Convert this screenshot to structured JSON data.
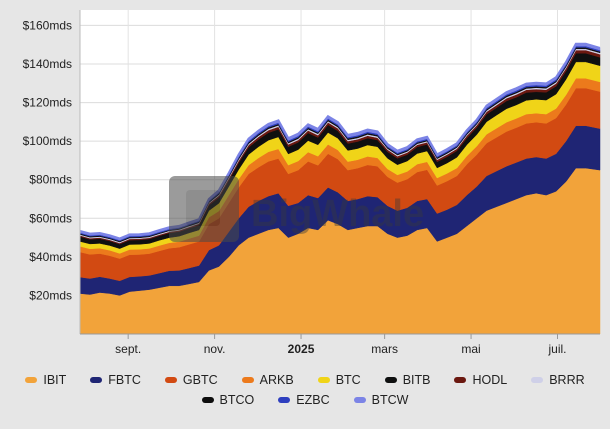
{
  "chart_data": {
    "type": "area",
    "stacked": true,
    "y_unit_prefix": "$",
    "y_unit_suffix": "mds",
    "ylim": [
      0,
      168
    ],
    "y_ticks": [
      20,
      40,
      60,
      80,
      100,
      120,
      140,
      160
    ],
    "y_tick_labels": [
      "$20mds",
      "$40mds",
      "$60mds",
      "$80mds",
      "$100mds",
      "$120mds",
      "$140mds",
      "$160mds"
    ],
    "x_range": [
      "2024-07-29",
      "2025-07-31"
    ],
    "x_ticks": [
      {
        "date": "2024-09-01",
        "label": "sept.",
        "bold": false
      },
      {
        "date": "2024-11-01",
        "label": "nov.",
        "bold": false
      },
      {
        "date": "2025-01-01",
        "label": "2025",
        "bold": true
      },
      {
        "date": "2025-03-01",
        "label": "mars",
        "bold": false
      },
      {
        "date": "2025-05-01",
        "label": "mai",
        "bold": false
      },
      {
        "date": "2025-07-01",
        "label": "juil.",
        "bold": false
      }
    ],
    "grid": true,
    "legend_position": "bottom",
    "x": [
      "2024-07-29",
      "2024-08-05",
      "2024-08-12",
      "2024-08-19",
      "2024-08-26",
      "2024-09-02",
      "2024-09-09",
      "2024-09-16",
      "2024-09-23",
      "2024-09-30",
      "2024-10-07",
      "2024-10-14",
      "2024-10-21",
      "2024-10-28",
      "2024-11-04",
      "2024-11-11",
      "2024-11-18",
      "2024-11-25",
      "2024-12-02",
      "2024-12-09",
      "2024-12-16",
      "2024-12-23",
      "2024-12-30",
      "2025-01-06",
      "2025-01-13",
      "2025-01-20",
      "2025-01-27",
      "2025-02-03",
      "2025-02-10",
      "2025-02-17",
      "2025-02-24",
      "2025-03-03",
      "2025-03-10",
      "2025-03-17",
      "2025-03-24",
      "2025-03-31",
      "2025-04-07",
      "2025-04-14",
      "2025-04-21",
      "2025-04-28",
      "2025-05-05",
      "2025-05-12",
      "2025-05-19",
      "2025-05-26",
      "2025-06-02",
      "2025-06-09",
      "2025-06-16",
      "2025-06-23",
      "2025-06-30",
      "2025-07-07",
      "2025-07-14",
      "2025-07-21",
      "2025-07-31"
    ],
    "series": [
      {
        "name": "IBIT",
        "color": "#f2a33a",
        "values": [
          21,
          20.5,
          21.5,
          21,
          20,
          22,
          22.5,
          23,
          24,
          25,
          25,
          26,
          27,
          33,
          35,
          40,
          46,
          50,
          52,
          54,
          55,
          50,
          52,
          55,
          54,
          59,
          57,
          54,
          55,
          56,
          56,
          52,
          50,
          51,
          54,
          55,
          48,
          50,
          52,
          56,
          60,
          64,
          66,
          68,
          70,
          72,
          73,
          72,
          74,
          79,
          86,
          86,
          85
        ]
      },
      {
        "name": "FBTC",
        "color": "#1f2574",
        "values": [
          8.5,
          8.3,
          8.2,
          7.8,
          7.6,
          7.6,
          7.4,
          7.4,
          7.6,
          7.8,
          8,
          8.2,
          8.5,
          10.5,
          11,
          13,
          14,
          16,
          17,
          17.5,
          18,
          16.5,
          16,
          17,
          16.5,
          17,
          16.5,
          15,
          15,
          15.5,
          15,
          14.5,
          14,
          14.5,
          15,
          15,
          14.5,
          14.5,
          15,
          16,
          16.5,
          18,
          18.5,
          19,
          19,
          19,
          18.8,
          19,
          19.5,
          21,
          22,
          22,
          21.5
        ]
      },
      {
        "name": "GBTC",
        "color": "#d24a12",
        "values": [
          13,
          12.5,
          12,
          11.8,
          11.5,
          11.5,
          11.3,
          11.3,
          11.5,
          11.7,
          12,
          12.3,
          12.5,
          13.5,
          14,
          15,
          16,
          17,
          17.5,
          18,
          18,
          16.5,
          17,
          17.5,
          17,
          17.5,
          17.2,
          16,
          16,
          16.2,
          16,
          15,
          14.5,
          14.8,
          15,
          15.2,
          14.5,
          14.8,
          15,
          16,
          16.5,
          17,
          17.5,
          18,
          18,
          18.2,
          18,
          18.2,
          18.5,
          19,
          19.5,
          19.5,
          19.2
        ]
      },
      {
        "name": "ARKB",
        "color": "#ec7a1c",
        "values": [
          3,
          2.9,
          2.8,
          2.8,
          2.7,
          2.7,
          2.7,
          2.7,
          2.8,
          2.8,
          2.9,
          3,
          3,
          3.5,
          3.8,
          4,
          4.3,
          4.6,
          4.8,
          5,
          5,
          4.6,
          4.7,
          4.8,
          4.7,
          4.8,
          4.7,
          4.4,
          4.4,
          4.4,
          4.3,
          4.1,
          4,
          4,
          4.1,
          4.1,
          3.9,
          4,
          4.1,
          4.3,
          4.4,
          4.6,
          4.7,
          4.8,
          4.8,
          4.8,
          4.7,
          4.8,
          4.9,
          5,
          5.1,
          5.1,
          5
        ]
      },
      {
        "name": "BTC",
        "color": "#f0d418",
        "values": [
          2.5,
          2.5,
          2.5,
          2.5,
          2.5,
          2.6,
          2.6,
          2.6,
          2.7,
          2.7,
          2.8,
          2.9,
          3,
          3.5,
          4,
          4.5,
          5,
          5.5,
          5.8,
          6,
          6.2,
          5.8,
          5.9,
          6,
          5.9,
          6.2,
          6.1,
          5.8,
          5.8,
          5.9,
          5.8,
          5.5,
          5.3,
          5.4,
          5.5,
          5.6,
          5.2,
          5.3,
          5.5,
          5.8,
          6,
          6.5,
          6.8,
          7,
          7,
          7.2,
          7.2,
          7.3,
          7.5,
          8,
          8.5,
          8.5,
          8.4
        ]
      },
      {
        "name": "BITB",
        "color": "#0f1010",
        "values": [
          2.5,
          2.4,
          2.4,
          2.3,
          2.3,
          2.3,
          2.3,
          2.3,
          2.3,
          2.4,
          2.4,
          2.5,
          2.5,
          2.8,
          3,
          3.2,
          3.5,
          3.7,
          3.8,
          3.9,
          4,
          3.7,
          3.8,
          3.9,
          3.8,
          3.9,
          3.8,
          3.6,
          3.6,
          3.6,
          3.5,
          3.4,
          3.3,
          3.3,
          3.4,
          3.4,
          3.2,
          3.3,
          3.4,
          3.5,
          3.6,
          3.8,
          3.9,
          4,
          4,
          4,
          3.9,
          4,
          4.1,
          4.3,
          4.5,
          4.5,
          4.4
        ]
      },
      {
        "name": "HODL",
        "color": "#6b1810",
        "values": [
          0.6,
          0.6,
          0.6,
          0.6,
          0.6,
          0.6,
          0.6,
          0.6,
          0.6,
          0.6,
          0.6,
          0.6,
          0.7,
          0.8,
          0.9,
          1,
          1.1,
          1.2,
          1.3,
          1.3,
          1.3,
          1.2,
          1.2,
          1.3,
          1.2,
          1.3,
          1.3,
          1.2,
          1.2,
          1.2,
          1.2,
          1.1,
          1.1,
          1.1,
          1.1,
          1.1,
          1,
          1.1,
          1.1,
          1.2,
          1.2,
          1.3,
          1.3,
          1.4,
          1.4,
          1.4,
          1.4,
          1.4,
          1.4,
          1.5,
          1.6,
          1.6,
          1.6
        ]
      },
      {
        "name": "BRRR",
        "color": "#cfd0e8",
        "values": [
          0.5,
          0.5,
          0.5,
          0.5,
          0.5,
          0.5,
          0.5,
          0.5,
          0.5,
          0.5,
          0.5,
          0.5,
          0.5,
          0.5,
          0.6,
          0.6,
          0.7,
          0.7,
          0.7,
          0.7,
          0.7,
          0.7,
          0.7,
          0.7,
          0.7,
          0.7,
          0.7,
          0.7,
          0.7,
          0.7,
          0.7,
          0.6,
          0.6,
          0.6,
          0.6,
          0.6,
          0.6,
          0.6,
          0.6,
          0.6,
          0.6,
          0.7,
          0.7,
          0.7,
          0.7,
          0.7,
          0.7,
          0.7,
          0.7,
          0.7,
          0.7,
          0.7,
          0.7
        ]
      },
      {
        "name": "BTCO",
        "color": "#0d0d0d",
        "values": [
          0.5,
          0.5,
          0.5,
          0.5,
          0.5,
          0.5,
          0.5,
          0.5,
          0.5,
          0.5,
          0.5,
          0.5,
          0.5,
          0.5,
          0.6,
          0.6,
          0.7,
          0.7,
          0.7,
          0.7,
          0.7,
          0.7,
          0.7,
          0.7,
          0.7,
          0.7,
          0.7,
          0.7,
          0.7,
          0.7,
          0.7,
          0.6,
          0.6,
          0.6,
          0.6,
          0.6,
          0.6,
          0.6,
          0.6,
          0.6,
          0.6,
          0.7,
          0.7,
          0.7,
          0.7,
          0.7,
          0.7,
          0.7,
          0.7,
          0.7,
          0.7,
          0.7,
          0.7
        ]
      },
      {
        "name": "EZBC",
        "color": "#2e3fbf",
        "values": [
          0.5,
          0.5,
          0.5,
          0.5,
          0.5,
          0.5,
          0.5,
          0.5,
          0.5,
          0.5,
          0.5,
          0.5,
          0.5,
          0.5,
          0.6,
          0.6,
          0.7,
          0.7,
          0.7,
          0.7,
          0.7,
          0.7,
          0.7,
          0.7,
          0.7,
          0.7,
          0.7,
          0.7,
          0.7,
          0.7,
          0.7,
          0.6,
          0.6,
          0.6,
          0.6,
          0.6,
          0.6,
          0.6,
          0.6,
          0.6,
          0.6,
          0.7,
          0.7,
          0.7,
          0.7,
          0.7,
          0.7,
          0.7,
          0.7,
          0.7,
          0.7,
          0.7,
          0.7
        ]
      },
      {
        "name": "BTCW",
        "color": "#7c84e6",
        "values": [
          0.8,
          0.8,
          0.8,
          0.8,
          0.8,
          0.8,
          0.8,
          0.8,
          0.8,
          0.8,
          0.8,
          0.8,
          0.8,
          0.9,
          1,
          1,
          1.1,
          1.1,
          1.1,
          1.1,
          1.1,
          1.1,
          1.1,
          1.1,
          1.1,
          1.1,
          1.1,
          1.1,
          1.1,
          1.1,
          1.1,
          1,
          1,
          1,
          1,
          1,
          1,
          1,
          1,
          1,
          1,
          1.1,
          1.1,
          1.1,
          1.1,
          1.1,
          1.1,
          1.1,
          1.1,
          1.1,
          1.1,
          1.1,
          1.1
        ]
      }
    ]
  },
  "watermark": {
    "text": "BigWhale"
  }
}
